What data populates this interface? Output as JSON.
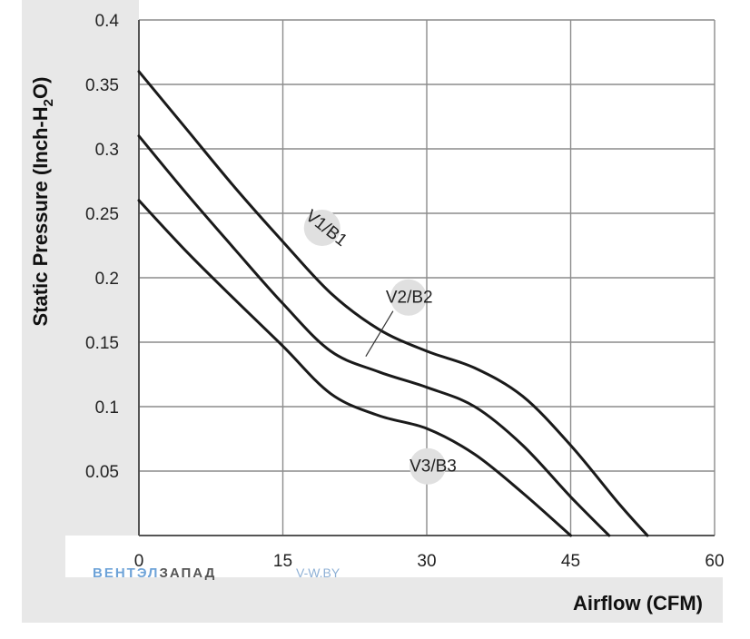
{
  "chart_data": {
    "type": "line",
    "title": "",
    "xlabel": "Airflow (CFM)",
    "ylabel_parts": [
      "Static Pressure (Inch-H",
      "2",
      "O)"
    ],
    "xlim": [
      0,
      60
    ],
    "ylim": [
      0,
      0.4
    ],
    "x_ticks": [
      0,
      15,
      30,
      45,
      60
    ],
    "x_tick_labels": [
      "0",
      "15",
      "30",
      "45",
      "60"
    ],
    "y_ticks": [
      0.05,
      0.1,
      0.15,
      0.2,
      0.25,
      0.3,
      0.35,
      0.4
    ],
    "y_tick_labels": [
      "0.05",
      "0.1",
      "0.15",
      "0.2",
      "0.25",
      "0.3",
      "0.35",
      "0.4"
    ],
    "grid": true,
    "series": [
      {
        "name": "V1/B1",
        "x": [
          0,
          5,
          10,
          15,
          20,
          25,
          30,
          35,
          40,
          45,
          50,
          53
        ],
        "y": [
          0.36,
          0.315,
          0.27,
          0.228,
          0.188,
          0.16,
          0.143,
          0.13,
          0.108,
          0.07,
          0.025,
          0
        ]
      },
      {
        "name": "V2/B2",
        "x": [
          0,
          5,
          10,
          15,
          20,
          25,
          30,
          35,
          40,
          45,
          49
        ],
        "y": [
          0.31,
          0.265,
          0.222,
          0.18,
          0.143,
          0.127,
          0.115,
          0.1,
          0.07,
          0.03,
          0
        ]
      },
      {
        "name": "V3/B3",
        "x": [
          0,
          5,
          10,
          15,
          20,
          25,
          30,
          35,
          40,
          45
        ],
        "y": [
          0.26,
          0.22,
          0.183,
          0.147,
          0.11,
          0.093,
          0.083,
          0.063,
          0.033,
          0
        ]
      }
    ],
    "annotations": [
      {
        "text": "V1/B1",
        "x": 19,
        "y": 0.238
      },
      {
        "text": "V2/B2",
        "x": 28,
        "y": 0.184
      },
      {
        "text": "V3/B3",
        "x": 30,
        "y": 0.053
      }
    ],
    "style": {
      "line_color": "#1a1a1a",
      "grid_color": "#8c8c8c",
      "label_band_color": "#e8e8e8",
      "marker_color": "#e0e0e0"
    }
  },
  "watermark": {
    "brand_part1": "ВЕНТЭЛ",
    "brand_part2": "ЗАПАД",
    "site": "V-W.BY",
    "color_part1": "#6ea3d8",
    "color_part2": "#555555",
    "color_site": "#8fb1d6"
  }
}
